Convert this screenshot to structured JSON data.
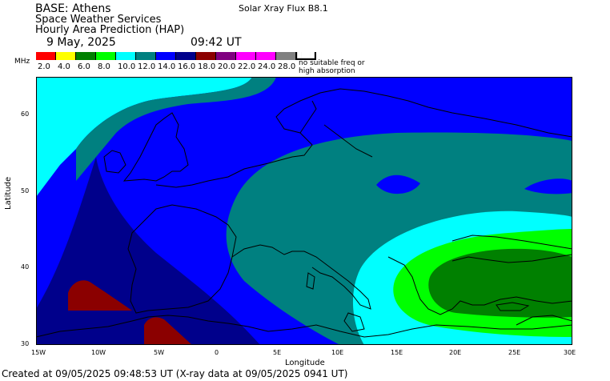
{
  "header": {
    "base": "BASE: Athens",
    "service": "Space Weather Services",
    "product": "Hourly Area Prediction (HAP)",
    "date": "9 May, 2025",
    "time": "09:42 UT",
    "flux": "Solar Xray Flux B8.1"
  },
  "legend": {
    "unit": "MHz",
    "labels": [
      "2.0",
      "4.0",
      "6.0",
      "8.0",
      "10.0",
      "12.0",
      "14.0",
      "16.0",
      "18.0",
      "20.0",
      "22.0",
      "24.0",
      "28.0"
    ],
    "colors": [
      "#ff0000",
      "#ffff00",
      "#008000",
      "#00ff00",
      "#00ffff",
      "#008080",
      "#0000ff",
      "#00008b",
      "#8b0000",
      "#800080",
      "#ff00ff",
      "#ff00ff",
      "#808080"
    ],
    "no_freq_note_line1": "no suitable freq or",
    "no_freq_note_line2": "high absorption"
  },
  "axes": {
    "xlabel": "Longitude",
    "ylabel": "Latitude",
    "x_ticks": [
      "15W",
      "10W",
      "5W",
      "0",
      "5E",
      "10E",
      "15E",
      "20E",
      "25E",
      "30E"
    ],
    "y_ticks": [
      "60",
      "50",
      "40",
      "30"
    ]
  },
  "footer": {
    "created": "Created at 09/05/2025 09:48:53 UT (X-ray data at 09/05/2025 0941 UT)"
  }
}
